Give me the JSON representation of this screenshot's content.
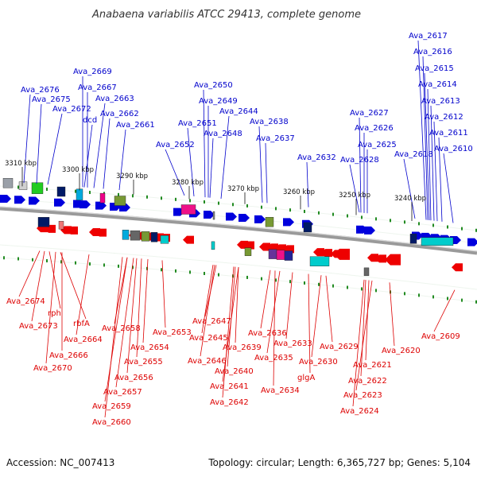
{
  "title": "Anabaena variabilis ATCC 29413, complete genome",
  "footer": {
    "accession": "Accession: NC_007413",
    "summary": "Topology: circular; Length: 6,365,727 bp; Genes: 5,104"
  },
  "colors": {
    "forward": "#0000dd",
    "reverse": "#ee0000",
    "backbone": "#888888",
    "tick": "#228b22",
    "label_forward": "#0000cc",
    "label_reverse": "#dd0000"
  },
  "scale_ticks": [
    "3310 kbp",
    "3300 kbp",
    "3290 kbp",
    "3280 kbp",
    "3270 kbp",
    "3260 kbp",
    "3250 kbp",
    "3240 kbp"
  ],
  "forward_labels": [
    "Ava_2676",
    "Ava_2675",
    "Ava_2672",
    "Ava_2669",
    "Ava_2667",
    "dcd",
    "Ava_2663",
    "Ava_2662",
    "Ava_2661",
    "Ava_2650",
    "Ava_2649",
    "Ava_2651",
    "Ava_2652",
    "Ava_2648",
    "Ava_2644",
    "Ava_2638",
    "Ava_2637",
    "Ava_2632",
    "Ava_2627",
    "Ava_2626",
    "Ava_2625",
    "Ava_2628",
    "Ava_2617",
    "Ava_2616",
    "Ava_2615",
    "Ava_2614",
    "Ava_2613",
    "Ava_2612",
    "Ava_2611",
    "Ava_2618",
    "Ava_2610"
  ],
  "reverse_labels": [
    "Ava_2674",
    "rph",
    "Ava_2673",
    "rbfA",
    "Ava_2664",
    "Ava_2666",
    "Ava_2670",
    "Ava_2658",
    "Ava_2653",
    "Ava_2654",
    "Ava_2655",
    "Ava_2656",
    "Ava_2657",
    "Ava_2659",
    "Ava_2660",
    "Ava_2647",
    "Ava_2645",
    "Ava_2646",
    "Ava_2639",
    "Ava_2640",
    "Ava_2641",
    "Ava_2642",
    "Ava_2636",
    "Ava_2633",
    "Ava_2635",
    "Ava_2634",
    "glgA",
    "Ava_2630",
    "Ava_2629",
    "Ava_2620",
    "Ava_2621",
    "Ava_2622",
    "Ava_2623",
    "Ava_2624",
    "Ava_2609"
  ]
}
